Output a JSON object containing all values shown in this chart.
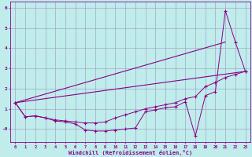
{
  "xlabel": "Windchill (Refroidissement éolien,°C)",
  "background_color": "#c0ecec",
  "line_color": "#880088",
  "grid_color": "#9999bb",
  "xlim": [
    -0.5,
    23.5
  ],
  "ylim": [
    -0.65,
    6.3
  ],
  "xtick_labels": [
    "0",
    "1",
    "2",
    "3",
    "4",
    "5",
    "6",
    "7",
    "8",
    "9",
    "10",
    "11",
    "12",
    "13",
    "14",
    "15",
    "16",
    "17",
    "18",
    "19",
    "20",
    "21",
    "22",
    "23"
  ],
  "ytick_vals": [
    0,
    1,
    2,
    3,
    4,
    5,
    6
  ],
  "ytick_labels": [
    "-0",
    "1",
    "2",
    "3",
    "4",
    "5",
    "6"
  ],
  "curve1_x": [
    0,
    1,
    2,
    3,
    4,
    5,
    6,
    7,
    8,
    9,
    10,
    11,
    12,
    13,
    14,
    15,
    16,
    17,
    18,
    19,
    20,
    21,
    22,
    23
  ],
  "curve1_y": [
    1.3,
    0.6,
    0.65,
    0.55,
    0.4,
    0.35,
    0.25,
    -0.05,
    -0.1,
    -0.1,
    -0.05,
    0.0,
    0.05,
    0.85,
    0.95,
    1.05,
    1.1,
    1.35,
    -0.35,
    1.65,
    1.85,
    5.85,
    4.3,
    2.85
  ],
  "curve2_x": [
    0,
    1,
    2,
    3,
    4,
    5,
    6,
    7,
    8,
    9,
    10,
    11,
    12,
    13,
    14,
    15,
    16,
    17,
    18,
    19,
    20,
    21,
    22,
    23
  ],
  "curve2_y": [
    1.3,
    0.6,
    0.65,
    0.55,
    0.45,
    0.4,
    0.35,
    0.3,
    0.3,
    0.35,
    0.55,
    0.7,
    0.85,
    1.0,
    1.1,
    1.2,
    1.3,
    1.5,
    1.6,
    2.1,
    2.3,
    2.55,
    2.7,
    2.85
  ],
  "curve3_x": [
    0,
    23
  ],
  "curve3_y": [
    1.3,
    2.85
  ],
  "curve4_x": [
    0,
    21
  ],
  "curve4_y": [
    1.3,
    4.3
  ]
}
